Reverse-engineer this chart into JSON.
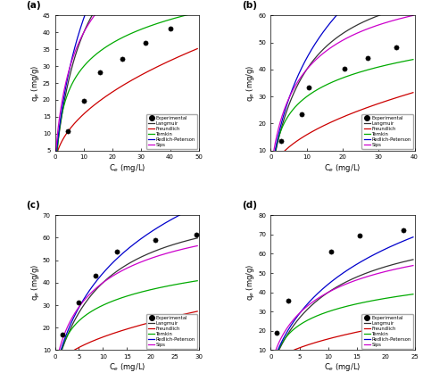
{
  "subplots": [
    {
      "label": "(a)",
      "exp_x": [
        4.5,
        10.2,
        15.5,
        23.5,
        31.5,
        40.2
      ],
      "exp_y": [
        10.7,
        19.8,
        28.3,
        32.2,
        36.8,
        41.1
      ],
      "xlim": [
        0,
        50
      ],
      "ylim": [
        5,
        45
      ],
      "xticks": [
        0,
        10,
        20,
        30,
        40,
        50
      ],
      "yticks": [
        5,
        10,
        15,
        20,
        25,
        30,
        35,
        40,
        45
      ]
    },
    {
      "label": "(b)",
      "exp_x": [
        3.0,
        8.5,
        10.5,
        20.5,
        27.0,
        35.0
      ],
      "exp_y": [
        13.5,
        23.5,
        33.5,
        40.2,
        44.2,
        48.3
      ],
      "xlim": [
        0,
        40
      ],
      "ylim": [
        10,
        60
      ],
      "xticks": [
        0,
        10,
        20,
        30,
        40
      ],
      "yticks": [
        10,
        20,
        30,
        40,
        50,
        60
      ]
    },
    {
      "label": "(c)",
      "exp_x": [
        1.5,
        5.0,
        8.5,
        13.0,
        21.0,
        29.5
      ],
      "exp_y": [
        17.0,
        31.0,
        43.0,
        54.0,
        59.0,
        61.5
      ],
      "xlim": [
        0,
        30
      ],
      "ylim": [
        10,
        70
      ],
      "xticks": [
        0,
        5,
        10,
        15,
        20,
        25,
        30
      ],
      "yticks": [
        10,
        20,
        30,
        40,
        50,
        60,
        70
      ]
    },
    {
      "label": "(d)",
      "exp_x": [
        1.0,
        3.0,
        10.5,
        15.5,
        23.0
      ],
      "exp_y": [
        19.0,
        35.5,
        61.0,
        69.5,
        72.0
      ],
      "xlim": [
        0,
        25
      ],
      "ylim": [
        10,
        80
      ],
      "xticks": [
        0,
        5,
        10,
        15,
        20,
        25
      ],
      "yticks": [
        10,
        20,
        30,
        40,
        50,
        60,
        70,
        80
      ]
    }
  ],
  "colors": {
    "langmuir": "#333333",
    "freundlich": "#cc0000",
    "temkin": "#00aa00",
    "redlich": "#0000cc",
    "sips": "#cc00cc"
  },
  "xlabel": "C$_e$ (mg/L)",
  "ylabel": "q$_e$ (mg/g)"
}
